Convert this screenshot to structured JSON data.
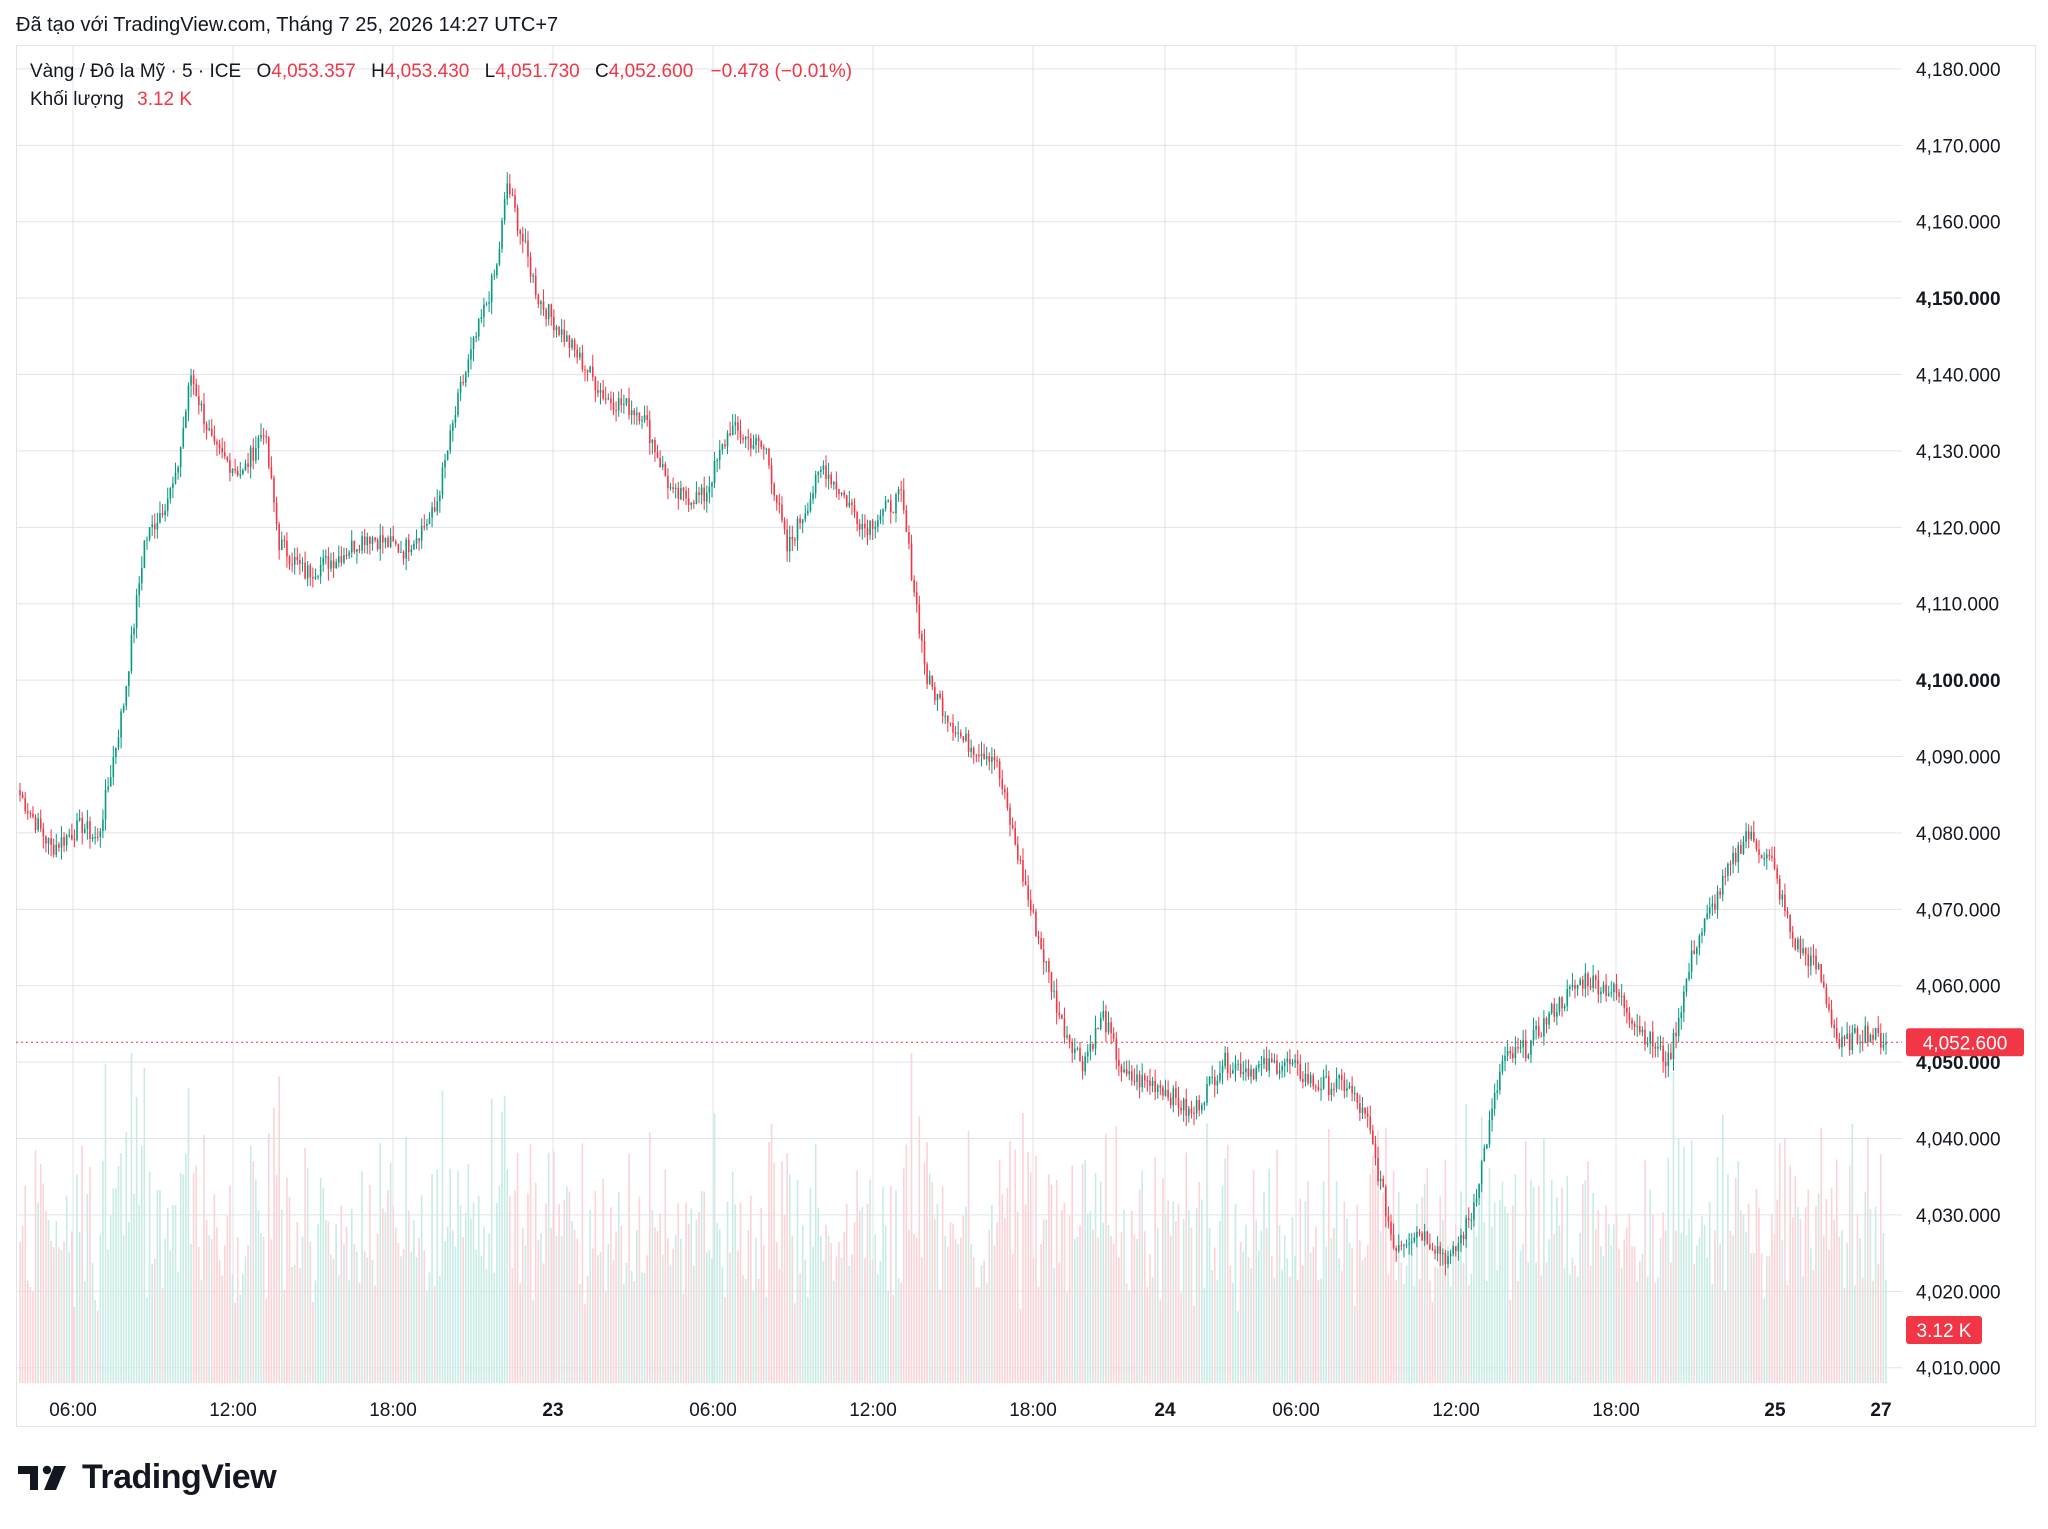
{
  "credit": "Đã tạo với TradingView.com, Tháng 7 25, 2026 14:27 UTC+7",
  "legend": {
    "symbol": "Vàng / Đô la Mỹ · 5 · ICE",
    "open_label": "O",
    "open": "4,053.357",
    "high_label": "H",
    "high": "4,053.430",
    "low_label": "L",
    "low": "4,051.730",
    "close_label": "C",
    "close": "4,052.600",
    "change": "−0.478 (−0.01%)",
    "volume_label": "Khối lượng",
    "volume": "3.12 K"
  },
  "logo_text": "TradingView",
  "colors": {
    "up": "#089981",
    "down": "#f23645",
    "grid": "#e0e3eb",
    "up_vol": "#c8ebe5",
    "down_vol": "#fcd3d6"
  },
  "chart_data": {
    "type": "candlestick",
    "y_axis_labels": [
      "4,180.000",
      "4,170.000",
      "4,160.000",
      "4,150.000",
      "4,140.000",
      "4,130.000",
      "4,120.000",
      "4,110.000",
      "4,100.000",
      "4,090.000",
      "4,080.000",
      "4,070.000",
      "4,060.000",
      "4,050.000",
      "4,040.000",
      "4,030.000",
      "4,020.000",
      "4,010.000"
    ],
    "y_bold_labels": [
      "4,150.000",
      "4,100.000",
      "4,050.000"
    ],
    "ylim": [
      4008,
      4183
    ],
    "x_labels": [
      {
        "label": "06:00",
        "bold": false
      },
      {
        "label": "12:00",
        "bold": false
      },
      {
        "label": "18:00",
        "bold": false
      },
      {
        "label": "23",
        "bold": true
      },
      {
        "label": "06:00",
        "bold": false
      },
      {
        "label": "12:00",
        "bold": false
      },
      {
        "label": "18:00",
        "bold": false
      },
      {
        "label": "24",
        "bold": true
      },
      {
        "label": "06:00",
        "bold": false
      },
      {
        "label": "12:00",
        "bold": false
      },
      {
        "label": "18:00",
        "bold": false
      },
      {
        "label": "25",
        "bold": true
      },
      {
        "label": "27",
        "bold": true
      }
    ],
    "price_waypoints": [
      [
        0,
        4085
      ],
      [
        12,
        4078
      ],
      [
        24,
        4081
      ],
      [
        30,
        4079
      ],
      [
        40,
        4097
      ],
      [
        48,
        4118
      ],
      [
        60,
        4126
      ],
      [
        66,
        4140
      ],
      [
        75,
        4130
      ],
      [
        86,
        4127
      ],
      [
        94,
        4133
      ],
      [
        100,
        4118
      ],
      [
        110,
        4114
      ],
      [
        122,
        4116
      ],
      [
        134,
        4119
      ],
      [
        148,
        4117
      ],
      [
        160,
        4122
      ],
      [
        170,
        4138
      ],
      [
        184,
        4154
      ],
      [
        188,
        4165
      ],
      [
        200,
        4150
      ],
      [
        212,
        4144
      ],
      [
        226,
        4137
      ],
      [
        240,
        4135
      ],
      [
        252,
        4124
      ],
      [
        264,
        4124
      ],
      [
        274,
        4133
      ],
      [
        288,
        4130
      ],
      [
        296,
        4117
      ],
      [
        310,
        4128
      ],
      [
        326,
        4120
      ],
      [
        340,
        4124
      ],
      [
        350,
        4100
      ],
      [
        364,
        4092
      ],
      [
        376,
        4090
      ],
      [
        390,
        4070
      ],
      [
        402,
        4055
      ],
      [
        410,
        4050
      ],
      [
        418,
        4056
      ],
      [
        426,
        4048
      ],
      [
        440,
        4047
      ],
      [
        452,
        4043
      ],
      [
        464,
        4050
      ],
      [
        476,
        4049
      ],
      [
        488,
        4050
      ],
      [
        500,
        4047
      ],
      [
        512,
        4047
      ],
      [
        520,
        4042
      ],
      [
        530,
        4026
      ],
      [
        540,
        4028
      ],
      [
        552,
        4024
      ],
      [
        560,
        4030
      ],
      [
        572,
        4050
      ],
      [
        582,
        4052
      ],
      [
        592,
        4057
      ],
      [
        604,
        4061
      ],
      [
        616,
        4059
      ],
      [
        626,
        4054
      ],
      [
        636,
        4050
      ],
      [
        646,
        4065
      ],
      [
        658,
        4074
      ],
      [
        666,
        4080
      ],
      [
        676,
        4076
      ],
      [
        684,
        4066
      ],
      [
        694,
        4062
      ],
      [
        702,
        4052
      ],
      [
        712,
        4054
      ],
      [
        720,
        4052.6
      ]
    ],
    "volume_ylim": [
      0,
      5
    ],
    "last_price": 4052.6,
    "last_price_label": "4,052.600",
    "last_volume_label": "3.12 K"
  }
}
